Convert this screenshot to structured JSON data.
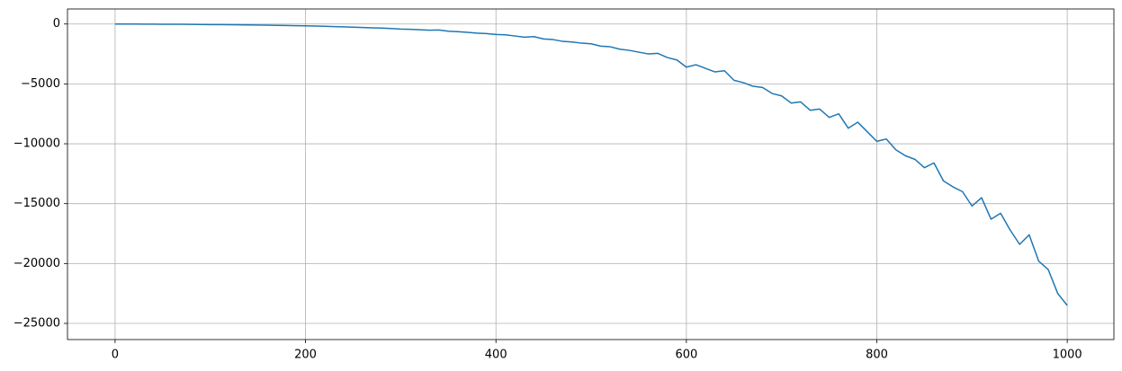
{
  "chart_data": {
    "type": "line",
    "grid": true,
    "xlim": [
      -50,
      1049
    ],
    "ylim": [
      -26350,
      1255
    ],
    "xticks": [
      0,
      200,
      400,
      600,
      800,
      1000
    ],
    "yticks": [
      0,
      {
        "value": -5000,
        "label": "−5000"
      },
      {
        "value": -10000,
        "label": "−10000"
      },
      {
        "value": -15000,
        "label": "−15000"
      },
      {
        "value": -20000,
        "label": "−20000"
      },
      {
        "value": -25000,
        "label": "−25000"
      }
    ],
    "x": [
      0,
      10,
      20,
      30,
      40,
      50,
      60,
      70,
      80,
      90,
      100,
      110,
      120,
      130,
      140,
      150,
      160,
      170,
      180,
      190,
      200,
      210,
      220,
      230,
      240,
      250,
      260,
      270,
      280,
      290,
      300,
      310,
      320,
      330,
      340,
      350,
      360,
      370,
      380,
      390,
      400,
      410,
      420,
      430,
      440,
      450,
      460,
      470,
      480,
      490,
      500,
      510,
      520,
      530,
      540,
      550,
      560,
      570,
      580,
      590,
      600,
      610,
      620,
      630,
      640,
      650,
      660,
      670,
      680,
      690,
      700,
      710,
      720,
      730,
      740,
      750,
      760,
      770,
      780,
      790,
      800,
      810,
      820,
      830,
      840,
      850,
      860,
      870,
      880,
      890,
      900,
      910,
      920,
      930,
      940,
      950,
      960,
      970,
      980,
      990,
      1000
    ],
    "series": [
      {
        "color": "#1f77b4",
        "values": [
          0,
          -2,
          -5,
          -8,
          -12,
          -16,
          -20,
          -25,
          -32,
          -38,
          -45,
          -52,
          -60,
          -70,
          -80,
          -90,
          -100,
          -112,
          -125,
          -138,
          -150,
          -170,
          -190,
          -215,
          -235,
          -260,
          -290,
          -320,
          -340,
          -380,
          -420,
          -440,
          -480,
          -520,
          -500,
          -600,
          -640,
          -700,
          -760,
          -800,
          -870,
          -900,
          -1000,
          -1100,
          -1050,
          -1250,
          -1300,
          -1450,
          -1500,
          -1600,
          -1650,
          -1850,
          -1900,
          -2100,
          -2200,
          -2350,
          -2500,
          -2450,
          -2800,
          -3000,
          -3600,
          -3400,
          -3700,
          -4000,
          -3900,
          -4700,
          -4900,
          -5200,
          -5300,
          -5800,
          -6000,
          -6600,
          -6500,
          -7200,
          -7100,
          -7800,
          -7500,
          -8700,
          -8200,
          -9000,
          -9800,
          -9600,
          -10500,
          -11000,
          -11300,
          -12000,
          -11600,
          -13100,
          -13600,
          -14000,
          -15200,
          -14500,
          -16300,
          -15800,
          -17200,
          -18400,
          -17600,
          -19800,
          -20500,
          -22500,
          -23500
        ]
      }
    ]
  }
}
